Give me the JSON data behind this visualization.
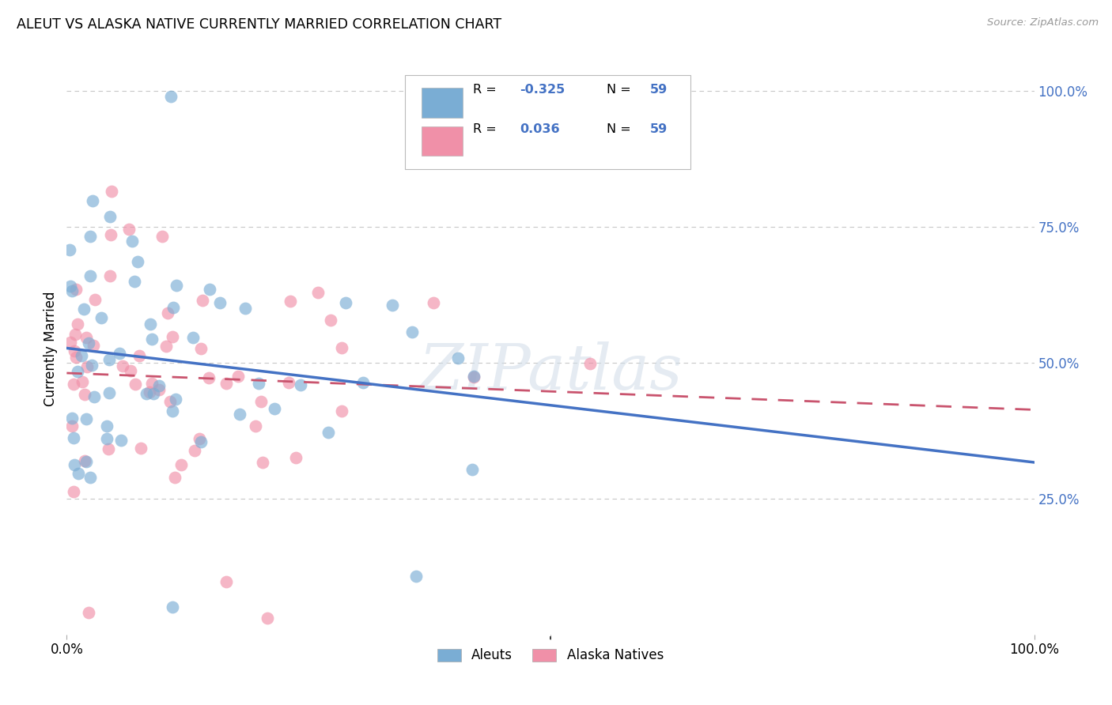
{
  "title": "ALEUT VS ALASKA NATIVE CURRENTLY MARRIED CORRELATION CHART",
  "source": "Source: ZipAtlas.com",
  "ylabel": "Currently Married",
  "ylabel_right_labels": [
    "100.0%",
    "75.0%",
    "50.0%",
    "25.0%"
  ],
  "ylabel_right_positions": [
    1.0,
    0.75,
    0.5,
    0.25
  ],
  "aleuts_color": "#7aadd4",
  "alaska_natives_color": "#f090a8",
  "trend_aleuts_color": "#4472c4",
  "trend_alaska_color": "#c9546e",
  "watermark": "ZIPatlas",
  "r_aleuts": -0.325,
  "r_alaska": 0.036,
  "n": 59,
  "xlim": [
    0.0,
    1.0
  ],
  "ylim": [
    0.0,
    1.05
  ],
  "background_color": "#ffffff",
  "grid_color": "#c8c8c8",
  "legend_box_color": "#e8e8e8"
}
